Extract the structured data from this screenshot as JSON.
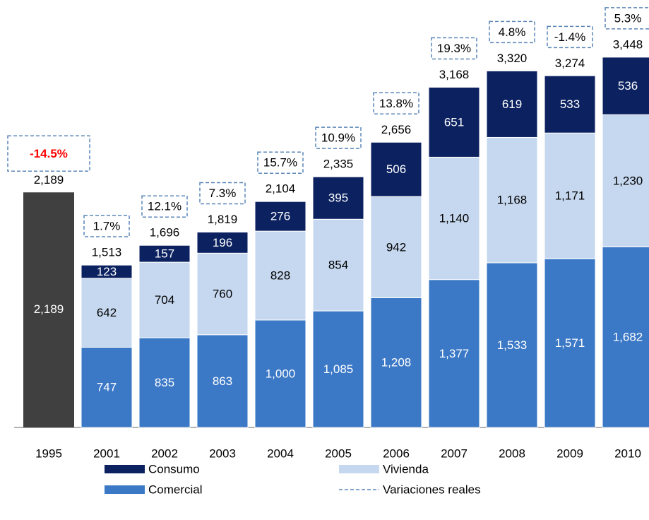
{
  "chart_data": {
    "type": "stacked-bar",
    "categories": [
      "1995",
      "2001",
      "2002",
      "2003",
      "2004",
      "2005",
      "2006",
      "2007",
      "2008",
      "2009",
      "2010"
    ],
    "series": [
      {
        "name": "Comercial",
        "color": "#3b78c6",
        "values": [
          null,
          747,
          835,
          863,
          1000,
          1085,
          1208,
          1377,
          1533,
          1571,
          1682
        ],
        "value_labels": [
          null,
          "747",
          "835",
          "863",
          "1,000",
          "1,085",
          "1,208",
          "1,377",
          "1,533",
          "1,571",
          "1,682"
        ]
      },
      {
        "name": "Vivienda",
        "color": "#c6d8ef",
        "values": [
          null,
          642,
          704,
          760,
          828,
          854,
          942,
          1140,
          1168,
          1171,
          1230
        ],
        "value_labels": [
          null,
          "642",
          "704",
          "760",
          "828",
          "854",
          "942",
          "1,140",
          "1,168",
          "1,171",
          "1,230"
        ]
      },
      {
        "name": "Consumo",
        "color": "#0c2260",
        "values": [
          null,
          123,
          157,
          196,
          276,
          395,
          506,
          651,
          619,
          533,
          536
        ]
      }
    ],
    "totals": {
      "color": "#404040",
      "values": [
        2189,
        1513,
        1696,
        1819,
        2104,
        2335,
        2656,
        3168,
        3320,
        3274,
        3448
      ],
      "value_labels": [
        "2,189",
        "1,513",
        "1,696",
        "1,819",
        "2,104",
        "2,335",
        "2,656",
        "3,168",
        "3,320",
        "3,274",
        "3,448"
      ]
    },
    "variations": {
      "name": "Variaciones reales",
      "color": "#5a86b8",
      "highlight_color": "#ff0000",
      "values": [
        -14.5,
        1.7,
        12.1,
        7.3,
        15.7,
        10.9,
        13.8,
        19.3,
        4.8,
        -1.4,
        5.3
      ],
      "value_labels": [
        "-14.5%",
        "1.7%",
        "12.1%",
        "7.3%",
        "15.7%",
        "10.9%",
        "13.8%",
        "19.3%",
        "4.8%",
        "-1.4%",
        "5.3%"
      ]
    },
    "ylim": [
      0,
      3500
    ]
  }
}
